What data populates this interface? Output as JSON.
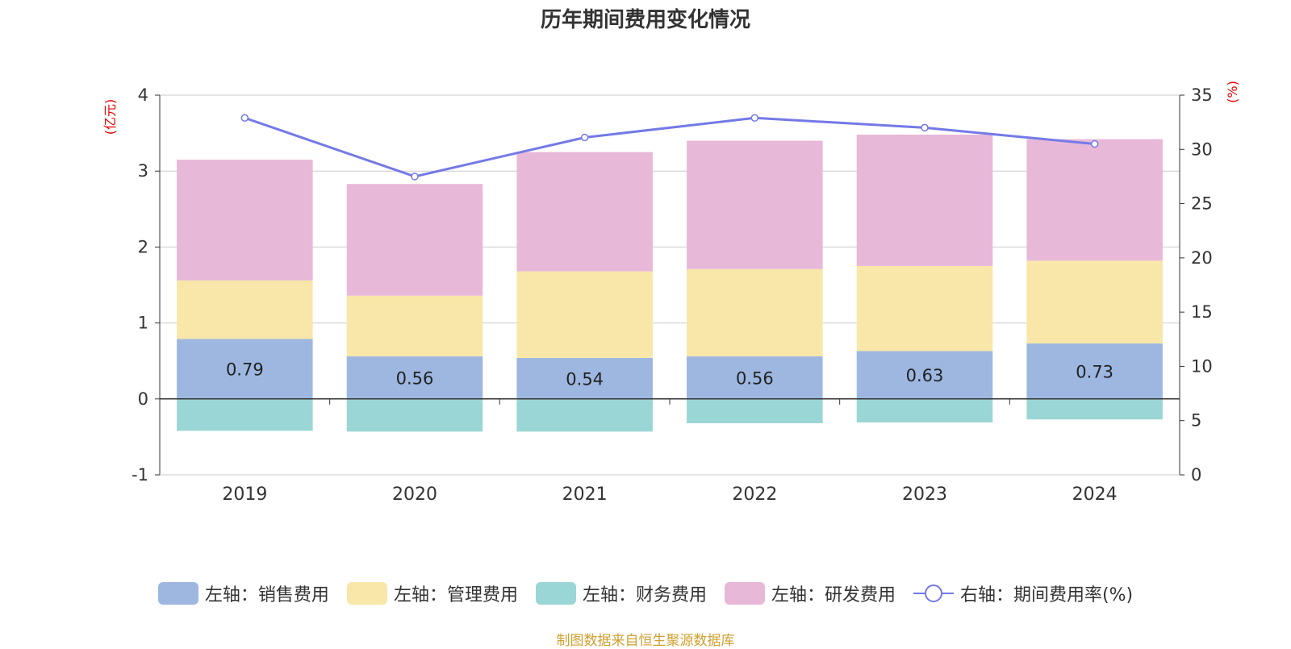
{
  "title": "历年期间费用变化情况",
  "source": "制图数据来自恒生聚源数据库",
  "chart_data": {
    "type": "bar",
    "stacked": true,
    "categories": [
      "2019",
      "2020",
      "2021",
      "2022",
      "2023",
      "2024"
    ],
    "y_left": {
      "label": "(亿元)",
      "ylim": [
        -1,
        4
      ],
      "ticks": [
        -1,
        0,
        1,
        2,
        3,
        4
      ]
    },
    "y_right": {
      "label": "(%)",
      "ylim": [
        0,
        35
      ],
      "ticks": [
        0,
        5,
        10,
        15,
        20,
        25,
        30,
        35
      ]
    },
    "grid": true,
    "legend_position": "bottom",
    "series": [
      {
        "name": "左轴：销售费用",
        "axis": "left",
        "type": "bar",
        "color": "#9db7e1",
        "values": [
          0.79,
          0.56,
          0.54,
          0.56,
          0.63,
          0.73
        ],
        "show_labels": true
      },
      {
        "name": "左轴：管理费用",
        "axis": "left",
        "type": "bar",
        "color": "#f8e7a8",
        "values": [
          0.77,
          0.8,
          1.14,
          1.15,
          1.12,
          1.09
        ]
      },
      {
        "name": "左轴：财务费用",
        "axis": "left",
        "type": "bar",
        "color": "#9bd6d6",
        "values": [
          -0.42,
          -0.43,
          -0.43,
          -0.32,
          -0.31,
          -0.27
        ]
      },
      {
        "name": "左轴：研发费用",
        "axis": "left",
        "type": "bar",
        "color": "#e8b8d9",
        "values": [
          1.59,
          1.47,
          1.57,
          1.69,
          1.73,
          1.6
        ]
      },
      {
        "name": "右轴：期间费用率(%)",
        "axis": "right",
        "type": "line",
        "color": "#7479e6",
        "values": [
          32.9,
          27.5,
          31.1,
          32.9,
          32.0,
          30.5
        ]
      }
    ]
  }
}
